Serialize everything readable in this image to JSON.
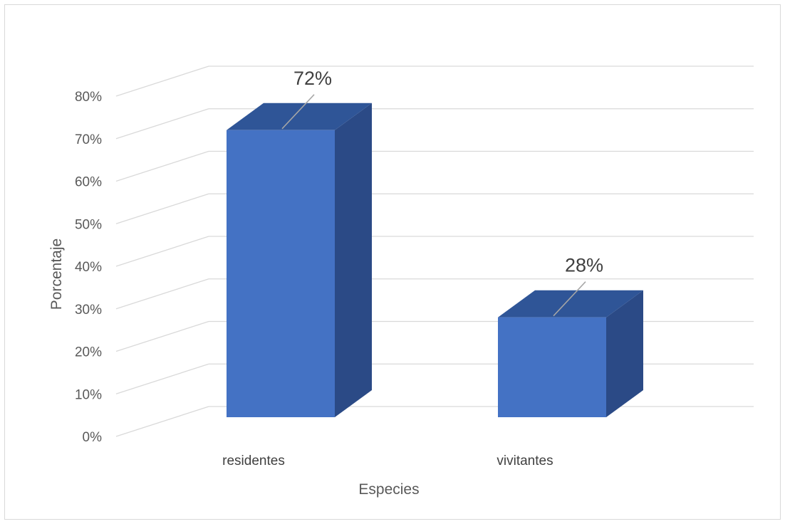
{
  "chart_data": {
    "type": "bar",
    "title": "",
    "xlabel": "Especies",
    "ylabel": "Porcentaje",
    "categories": [
      "residentes",
      "vivitantes"
    ],
    "values": [
      72,
      28
    ],
    "data_labels": [
      "72%",
      "28%"
    ],
    "ylim": [
      0,
      80
    ],
    "yticks": [
      "0%",
      "10%",
      "20%",
      "30%",
      "40%",
      "50%",
      "60%",
      "70%",
      "80%"
    ],
    "grid": true,
    "legend": "none",
    "style": "3d-column",
    "colors": {
      "front": "#4472c4",
      "top": "#2f5597",
      "side": "#2b4a86",
      "grid": "#d9d9d9"
    }
  }
}
